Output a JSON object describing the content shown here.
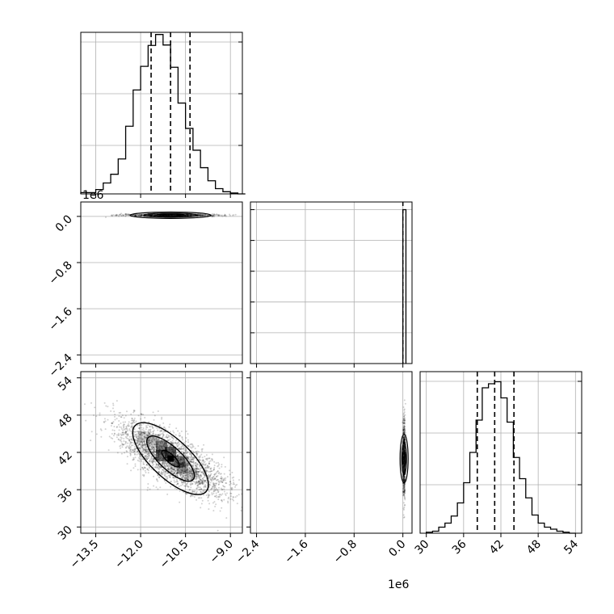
{
  "chart_data": [
    {
      "type": "histogram",
      "panel": "hist-param-1",
      "x": [
        -14.0,
        -13.75,
        -13.5,
        -13.25,
        -13.0,
        -12.75,
        -12.5,
        -12.25,
        -12.0,
        -11.75,
        -11.5,
        -11.25,
        -11.0,
        -10.75,
        -10.5,
        -10.25,
        -10.0,
        -9.75,
        -9.5,
        -9.25,
        -9.0,
        -8.75
      ],
      "values": [
        3,
        3,
        10,
        25,
        45,
        80,
        155,
        238,
        292,
        340,
        365,
        341,
        290,
        208,
        150,
        100,
        60,
        30,
        12,
        5,
        2,
        0
      ],
      "quantile_lines": [
        -11.65,
        -11.0,
        -10.35
      ],
      "xlim": [
        -14.0,
        -8.6
      ],
      "ylim": [
        0,
        370
      ],
      "grid": true,
      "x_ticks": [
        "−13.5",
        "−12.0",
        "−10.5",
        "−9.0"
      ]
    },
    {
      "type": "histogram",
      "panel": "hist-param-2",
      "x": [
        0.0
      ],
      "values": [
        1.0
      ],
      "bin_width": 0.05,
      "quantile_lines": [
        -0.003,
        0.0,
        0.003
      ],
      "xlim": [
        -2.5,
        0.15
      ],
      "ylim": [
        0,
        1.05
      ],
      "grid": true,
      "x_ticks": [
        "−2.4",
        "−1.6",
        "−0.8",
        "0.0"
      ],
      "offset_label": "1e6"
    },
    {
      "type": "histogram",
      "panel": "hist-param-3",
      "x": [
        30,
        31,
        32,
        33,
        34,
        35,
        36,
        37,
        38,
        39,
        40,
        41,
        42,
        43,
        44,
        45,
        46,
        47,
        48,
        49,
        50,
        51,
        52,
        53
      ],
      "values": [
        1,
        2,
        6,
        10,
        17,
        30,
        50,
        80,
        112,
        144,
        148,
        150,
        134,
        110,
        75,
        54,
        35,
        18,
        10,
        6,
        4,
        2,
        1,
        0
      ],
      "quantile_lines": [
        38.2,
        41.0,
        44.1
      ],
      "xlim": [
        29.0,
        55.0
      ],
      "ylim": [
        0,
        160
      ],
      "grid": true,
      "x_ticks": [
        "30",
        "36",
        "42",
        "48",
        "54"
      ]
    },
    {
      "type": "scatter",
      "panel": "scatter-param1-param2",
      "center": [
        -11.0,
        0.02
      ],
      "spread": [
        0.8,
        0.01
      ],
      "ellipses": [
        [
          0.5,
          0.02
        ],
        [
          0.9,
          0.035
        ],
        [
          1.35,
          0.055
        ]
      ],
      "xlim": [
        -14.0,
        -8.6
      ],
      "ylim": [
        -2.55,
        0.25
      ],
      "y_ticks": [
        "0.0",
        "−0.8",
        "−1.6",
        "−2.4"
      ],
      "offset_label": "1e6",
      "grid": true
    },
    {
      "type": "scatter",
      "panel": "scatter-param1-param3",
      "center": [
        -11.0,
        41.0
      ],
      "spread": [
        0.9,
        3.0
      ],
      "correlation": -0.75,
      "xlim": [
        -14.0,
        -8.6
      ],
      "ylim": [
        29.0,
        55.0
      ],
      "x_ticks": [
        "−13.5",
        "−12.0",
        "−10.5",
        "−9.0"
      ],
      "y_ticks": [
        "30",
        "36",
        "42",
        "48",
        "54"
      ],
      "grid": true
    },
    {
      "type": "scatter",
      "panel": "scatter-param2-param3",
      "center": [
        0.02,
        41.0
      ],
      "spread": [
        0.01,
        3.0
      ],
      "xlim": [
        -2.5,
        0.15
      ],
      "ylim": [
        29.0,
        55.0
      ],
      "x_ticks": [
        "−2.4",
        "−1.6",
        "−0.8",
        "0.0"
      ],
      "offset_label": "1e6",
      "grid": true
    }
  ],
  "offset_labels": {
    "hist1_bottom": "1e6",
    "bottom_middle": "1e6"
  }
}
